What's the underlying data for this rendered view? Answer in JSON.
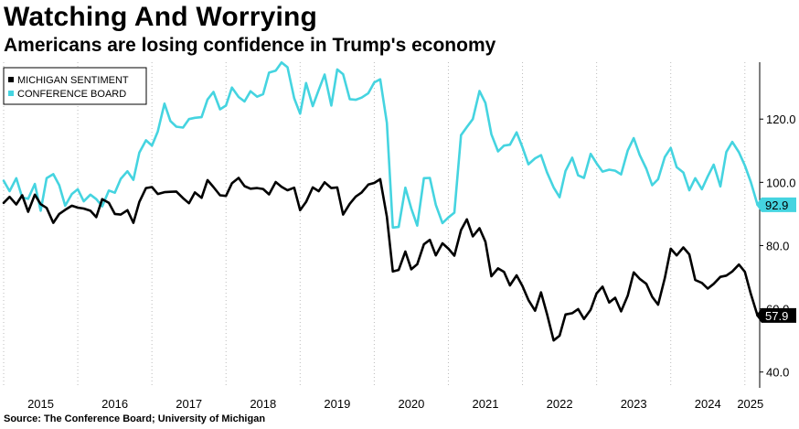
{
  "header": {
    "title": "Watching And Worrying",
    "subtitle": "Americans are losing confidence in Trump's economy"
  },
  "source": "Source: The Conference Board; University of Michigan",
  "chart_data": {
    "type": "line",
    "title": "Watching And Worrying",
    "subtitle": "Americans are losing confidence in Trump's economy",
    "xlabel": "",
    "ylabel": "",
    "x_range": [
      2015.0,
      2025.2
    ],
    "ylim": [
      35,
      138
    ],
    "x_ticks": [
      "2015",
      "2016",
      "2017",
      "2018",
      "2019",
      "2020",
      "2021",
      "2022",
      "2023",
      "2024",
      "2025"
    ],
    "y_ticks": [
      "40.0",
      "60.0",
      "80.0",
      "100.0",
      "120.0"
    ],
    "y_tick_values": [
      40,
      60,
      80,
      100,
      120
    ],
    "grid": "vertical dotted",
    "legend_position": "top-left",
    "colors": {
      "michigan": "#000000",
      "conference": "#45d4e0"
    },
    "series": [
      {
        "name": "MICHIGAN SENTIMENT",
        "key": "michigan",
        "end_label": "57.9",
        "points": [
          [
            2015.0,
            93.5
          ],
          [
            2015.08,
            95.4
          ],
          [
            2015.17,
            93.0
          ],
          [
            2015.25,
            95.9
          ],
          [
            2015.33,
            90.7
          ],
          [
            2015.42,
            96.1
          ],
          [
            2015.5,
            93.1
          ],
          [
            2015.58,
            91.9
          ],
          [
            2015.67,
            87.2
          ],
          [
            2015.75,
            90.0
          ],
          [
            2015.83,
            91.3
          ],
          [
            2015.92,
            92.6
          ],
          [
            2016.0,
            92.0
          ],
          [
            2016.08,
            91.7
          ],
          [
            2016.17,
            91.0
          ],
          [
            2016.25,
            89.0
          ],
          [
            2016.33,
            94.7
          ],
          [
            2016.42,
            93.5
          ],
          [
            2016.5,
            90.0
          ],
          [
            2016.58,
            89.8
          ],
          [
            2016.67,
            91.2
          ],
          [
            2016.75,
            87.2
          ],
          [
            2016.83,
            93.8
          ],
          [
            2016.92,
            98.2
          ],
          [
            2017.0,
            98.5
          ],
          [
            2017.08,
            96.3
          ],
          [
            2017.17,
            96.9
          ],
          [
            2017.25,
            97.0
          ],
          [
            2017.33,
            97.1
          ],
          [
            2017.42,
            95.0
          ],
          [
            2017.5,
            93.4
          ],
          [
            2017.58,
            96.8
          ],
          [
            2017.67,
            95.1
          ],
          [
            2017.75,
            100.7
          ],
          [
            2017.83,
            98.5
          ],
          [
            2017.92,
            95.9
          ],
          [
            2018.0,
            95.7
          ],
          [
            2018.08,
            99.7
          ],
          [
            2018.17,
            101.4
          ],
          [
            2018.25,
            98.8
          ],
          [
            2018.33,
            98.0
          ],
          [
            2018.42,
            98.2
          ],
          [
            2018.5,
            97.9
          ],
          [
            2018.58,
            96.2
          ],
          [
            2018.67,
            100.1
          ],
          [
            2018.75,
            98.6
          ],
          [
            2018.83,
            97.5
          ],
          [
            2018.92,
            98.3
          ],
          [
            2019.0,
            91.2
          ],
          [
            2019.08,
            93.8
          ],
          [
            2019.17,
            98.4
          ],
          [
            2019.25,
            97.2
          ],
          [
            2019.33,
            100.0
          ],
          [
            2019.42,
            98.2
          ],
          [
            2019.5,
            98.4
          ],
          [
            2019.58,
            89.8
          ],
          [
            2019.67,
            93.2
          ],
          [
            2019.75,
            95.5
          ],
          [
            2019.83,
            96.8
          ],
          [
            2019.92,
            99.3
          ],
          [
            2020.0,
            99.8
          ],
          [
            2020.08,
            101.0
          ],
          [
            2020.17,
            89.1
          ],
          [
            2020.25,
            71.8
          ],
          [
            2020.33,
            72.3
          ],
          [
            2020.42,
            78.1
          ],
          [
            2020.5,
            72.5
          ],
          [
            2020.58,
            74.1
          ],
          [
            2020.67,
            80.4
          ],
          [
            2020.75,
            81.8
          ],
          [
            2020.83,
            76.9
          ],
          [
            2020.92,
            80.7
          ],
          [
            2021.0,
            79.0
          ],
          [
            2021.08,
            76.8
          ],
          [
            2021.17,
            84.9
          ],
          [
            2021.25,
            88.3
          ],
          [
            2021.33,
            82.9
          ],
          [
            2021.42,
            85.5
          ],
          [
            2021.5,
            81.2
          ],
          [
            2021.58,
            70.3
          ],
          [
            2021.67,
            72.8
          ],
          [
            2021.75,
            71.7
          ],
          [
            2021.83,
            67.4
          ],
          [
            2021.92,
            70.6
          ],
          [
            2022.0,
            67.2
          ],
          [
            2022.08,
            62.8
          ],
          [
            2022.17,
            59.4
          ],
          [
            2022.25,
            65.2
          ],
          [
            2022.33,
            58.4
          ],
          [
            2022.42,
            50.0
          ],
          [
            2022.5,
            51.5
          ],
          [
            2022.58,
            58.2
          ],
          [
            2022.67,
            58.6
          ],
          [
            2022.75,
            59.9
          ],
          [
            2022.83,
            56.8
          ],
          [
            2022.92,
            59.7
          ],
          [
            2023.0,
            64.9
          ],
          [
            2023.08,
            67.0
          ],
          [
            2023.17,
            62.0
          ],
          [
            2023.25,
            63.5
          ],
          [
            2023.33,
            59.2
          ],
          [
            2023.42,
            64.2
          ],
          [
            2023.5,
            71.5
          ],
          [
            2023.58,
            69.5
          ],
          [
            2023.67,
            67.9
          ],
          [
            2023.75,
            63.8
          ],
          [
            2023.83,
            61.3
          ],
          [
            2023.92,
            69.7
          ],
          [
            2024.0,
            79.0
          ],
          [
            2024.08,
            76.9
          ],
          [
            2024.17,
            79.4
          ],
          [
            2024.25,
            77.2
          ],
          [
            2024.33,
            69.1
          ],
          [
            2024.42,
            68.2
          ],
          [
            2024.5,
            66.4
          ],
          [
            2024.58,
            67.9
          ],
          [
            2024.67,
            70.1
          ],
          [
            2024.75,
            70.5
          ],
          [
            2024.83,
            71.8
          ],
          [
            2024.92,
            74.0
          ],
          [
            2025.0,
            71.7
          ],
          [
            2025.08,
            64.7
          ],
          [
            2025.17,
            57.9
          ]
        ]
      },
      {
        "name": "CONFERENCE BOARD",
        "key": "conference",
        "end_label": "92.9",
        "points": [
          [
            2015.0,
            100.5
          ],
          [
            2015.08,
            97.2
          ],
          [
            2015.17,
            101.3
          ],
          [
            2015.25,
            95.2
          ],
          [
            2015.33,
            94.8
          ],
          [
            2015.42,
            99.5
          ],
          [
            2015.5,
            91.0
          ],
          [
            2015.58,
            101.3
          ],
          [
            2015.67,
            102.6
          ],
          [
            2015.75,
            99.1
          ],
          [
            2015.83,
            92.6
          ],
          [
            2015.92,
            96.3
          ],
          [
            2016.0,
            97.8
          ],
          [
            2016.08,
            94.0
          ],
          [
            2016.17,
            96.1
          ],
          [
            2016.25,
            94.7
          ],
          [
            2016.33,
            92.4
          ],
          [
            2016.42,
            97.4
          ],
          [
            2016.5,
            96.7
          ],
          [
            2016.58,
            101.1
          ],
          [
            2016.67,
            103.5
          ],
          [
            2016.75,
            100.8
          ],
          [
            2016.83,
            109.4
          ],
          [
            2016.92,
            113.3
          ],
          [
            2017.0,
            111.6
          ],
          [
            2017.08,
            116.1
          ],
          [
            2017.17,
            124.9
          ],
          [
            2017.25,
            119.4
          ],
          [
            2017.33,
            117.6
          ],
          [
            2017.42,
            117.3
          ],
          [
            2017.5,
            120.0
          ],
          [
            2017.58,
            120.4
          ],
          [
            2017.67,
            120.6
          ],
          [
            2017.75,
            126.2
          ],
          [
            2017.83,
            128.6
          ],
          [
            2017.92,
            123.1
          ],
          [
            2018.0,
            124.3
          ],
          [
            2018.08,
            130.0
          ],
          [
            2018.17,
            127.0
          ],
          [
            2018.25,
            125.6
          ],
          [
            2018.33,
            128.8
          ],
          [
            2018.42,
            127.1
          ],
          [
            2018.5,
            127.9
          ],
          [
            2018.58,
            134.7
          ],
          [
            2018.67,
            135.3
          ],
          [
            2018.75,
            137.9
          ],
          [
            2018.83,
            136.4
          ],
          [
            2018.92,
            126.6
          ],
          [
            2019.0,
            121.7
          ],
          [
            2019.08,
            131.4
          ],
          [
            2019.17,
            124.1
          ],
          [
            2019.25,
            129.2
          ],
          [
            2019.33,
            134.1
          ],
          [
            2019.42,
            124.3
          ],
          [
            2019.5,
            135.7
          ],
          [
            2019.58,
            134.2
          ],
          [
            2019.67,
            126.3
          ],
          [
            2019.75,
            126.1
          ],
          [
            2019.83,
            126.8
          ],
          [
            2019.92,
            128.2
          ],
          [
            2020.0,
            131.6
          ],
          [
            2020.08,
            132.6
          ],
          [
            2020.17,
            118.8
          ],
          [
            2020.25,
            85.7
          ],
          [
            2020.33,
            85.9
          ],
          [
            2020.42,
            98.3
          ],
          [
            2020.5,
            91.7
          ],
          [
            2020.58,
            86.3
          ],
          [
            2020.67,
            101.3
          ],
          [
            2020.75,
            101.4
          ],
          [
            2020.83,
            92.9
          ],
          [
            2020.92,
            87.1
          ],
          [
            2021.0,
            88.9
          ],
          [
            2021.08,
            90.4
          ],
          [
            2021.17,
            114.9
          ],
          [
            2021.25,
            117.5
          ],
          [
            2021.33,
            120.0
          ],
          [
            2021.42,
            128.9
          ],
          [
            2021.5,
            125.1
          ],
          [
            2021.58,
            115.2
          ],
          [
            2021.67,
            109.8
          ],
          [
            2021.75,
            111.6
          ],
          [
            2021.83,
            111.9
          ],
          [
            2021.92,
            115.8
          ],
          [
            2022.0,
            111.1
          ],
          [
            2022.08,
            105.7
          ],
          [
            2022.17,
            107.6
          ],
          [
            2022.25,
            108.6
          ],
          [
            2022.33,
            103.2
          ],
          [
            2022.42,
            98.4
          ],
          [
            2022.5,
            95.3
          ],
          [
            2022.58,
            103.6
          ],
          [
            2022.67,
            107.8
          ],
          [
            2022.75,
            102.2
          ],
          [
            2022.83,
            101.4
          ],
          [
            2022.92,
            109.0
          ],
          [
            2023.0,
            106.0
          ],
          [
            2023.08,
            103.4
          ],
          [
            2023.17,
            104.0
          ],
          [
            2023.25,
            103.7
          ],
          [
            2023.33,
            102.5
          ],
          [
            2023.42,
            110.1
          ],
          [
            2023.5,
            114.0
          ],
          [
            2023.58,
            108.7
          ],
          [
            2023.67,
            104.3
          ],
          [
            2023.75,
            99.1
          ],
          [
            2023.83,
            101.0
          ],
          [
            2023.92,
            108.0
          ],
          [
            2024.0,
            110.9
          ],
          [
            2024.08,
            104.8
          ],
          [
            2024.17,
            103.1
          ],
          [
            2024.25,
            97.5
          ],
          [
            2024.33,
            101.3
          ],
          [
            2024.42,
            97.8
          ],
          [
            2024.5,
            101.9
          ],
          [
            2024.58,
            105.6
          ],
          [
            2024.67,
            98.7
          ],
          [
            2024.75,
            109.6
          ],
          [
            2024.83,
            112.8
          ],
          [
            2024.92,
            109.5
          ],
          [
            2025.0,
            105.3
          ],
          [
            2025.08,
            100.1
          ],
          [
            2025.17,
            92.9
          ]
        ]
      }
    ]
  }
}
